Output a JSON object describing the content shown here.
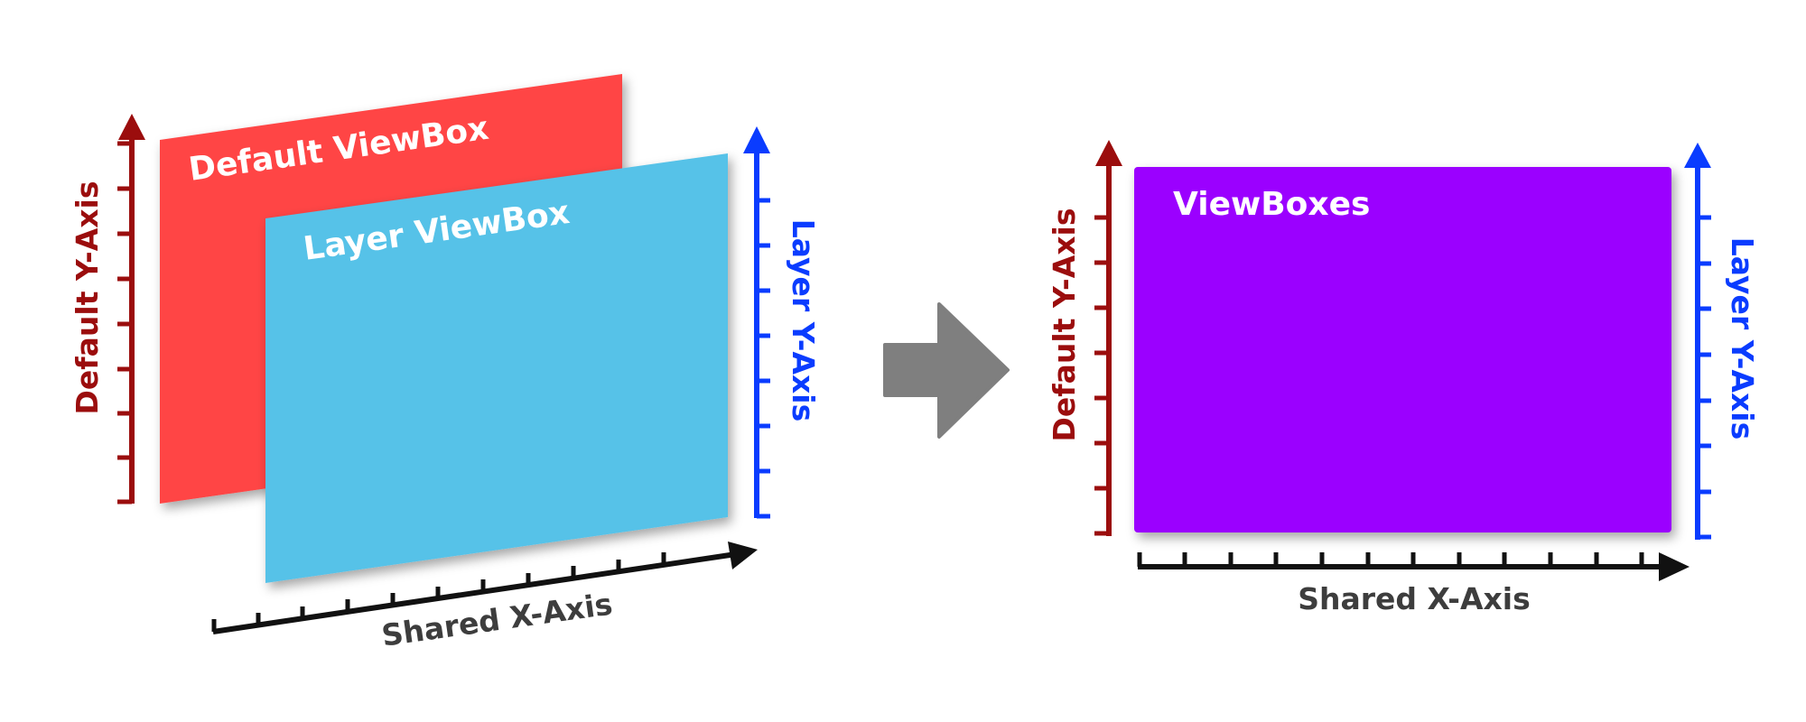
{
  "left_panel": {
    "default_viewbox_label": "Default ViewBox",
    "layer_viewbox_label": "Layer ViewBox",
    "default_y_axis_label": "Default Y-Axis",
    "layer_y_axis_label": "Layer Y-Axis",
    "shared_x_axis_label": "Shared X-Axis"
  },
  "right_panel": {
    "viewboxes_label": "ViewBoxes",
    "default_y_axis_label": "Default Y-Axis",
    "layer_y_axis_label": "Layer Y-Axis",
    "shared_x_axis_label": "Shared X-Axis"
  },
  "transition": {
    "icon": "arrow-right-icon"
  },
  "colors": {
    "default_viewbox": "#ff4545",
    "layer_viewbox": "#57c2e8",
    "combined_viewbox": "#9b00ff",
    "default_axis": "#9b0d0d",
    "layer_axis": "#0a3cff",
    "shared_axis": "#111111",
    "axis_label_dark": "#3d3d3d",
    "arrow": "#7f7f7f"
  }
}
